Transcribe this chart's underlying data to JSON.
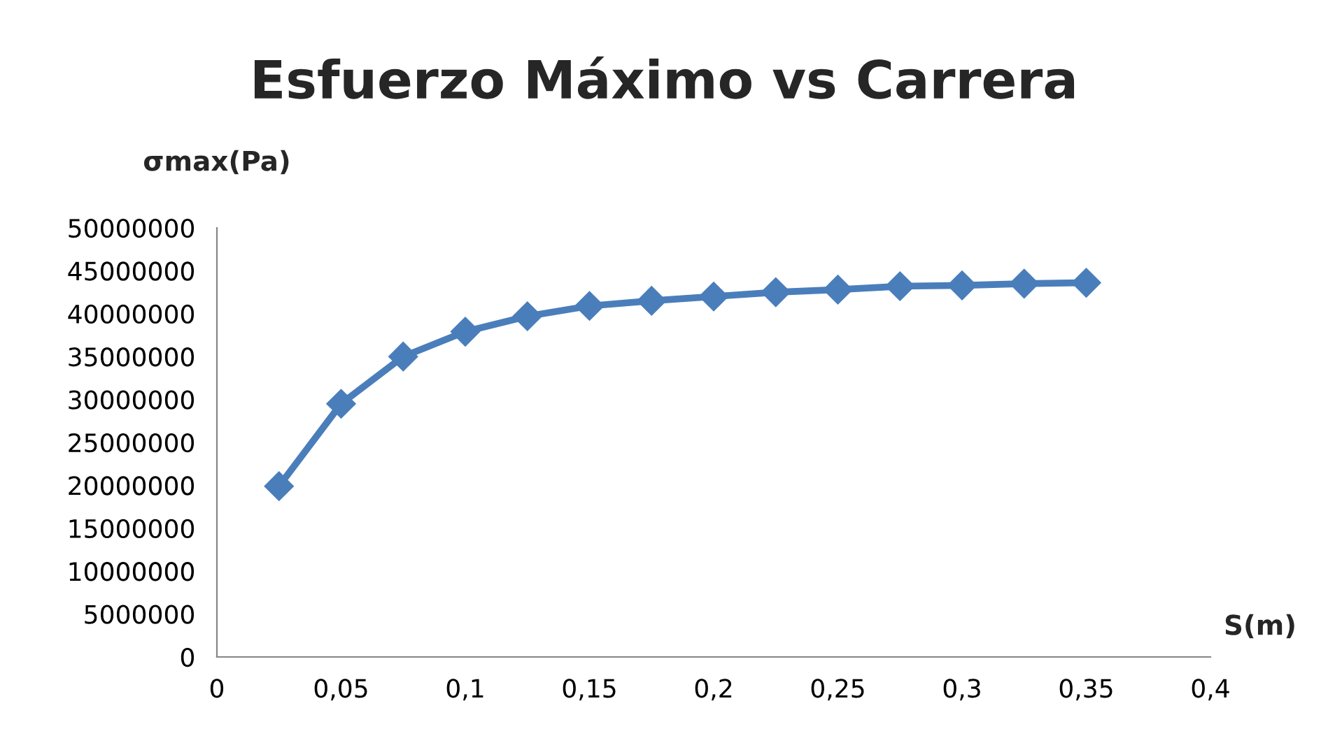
{
  "chart_data": {
    "type": "line",
    "title": "Esfuerzo Máximo vs Carrera",
    "xlabel": "S(m)",
    "ylabel": "σmax(Pa)",
    "x": [
      0.025,
      0.05,
      0.075,
      0.1,
      0.125,
      0.15,
      0.175,
      0.2,
      0.225,
      0.25,
      0.275,
      0.3,
      0.325,
      0.35
    ],
    "series": [
      {
        "color": "#4a7ebb",
        "values": [
          19900000,
          29500000,
          35000000,
          37900000,
          39700000,
          40900000,
          41500000,
          42000000,
          42500000,
          42800000,
          43200000,
          43300000,
          43500000,
          43600000
        ]
      }
    ],
    "xlim": [
      0,
      0.4
    ],
    "xticks": [
      0,
      {
        "value": 0.05,
        "label": "0,05"
      },
      {
        "value": 0.1,
        "label": "0,1"
      },
      {
        "value": 0.15,
        "label": "0,15"
      },
      {
        "value": 0.2,
        "label": "0,2"
      },
      {
        "value": 0.25,
        "label": "0,25"
      },
      {
        "value": 0.3,
        "label": "0,3"
      },
      {
        "value": 0.35,
        "label": "0,35"
      },
      {
        "value": 0.4,
        "label": "0,4"
      }
    ],
    "ylim": [
      0,
      50000000
    ],
    "yticks": [
      0,
      5000000,
      10000000,
      15000000,
      20000000,
      25000000,
      30000000,
      35000000,
      40000000,
      45000000,
      50000000
    ],
    "marker": "diamond",
    "line_style": "solid",
    "grid": false,
    "legend": false
  }
}
